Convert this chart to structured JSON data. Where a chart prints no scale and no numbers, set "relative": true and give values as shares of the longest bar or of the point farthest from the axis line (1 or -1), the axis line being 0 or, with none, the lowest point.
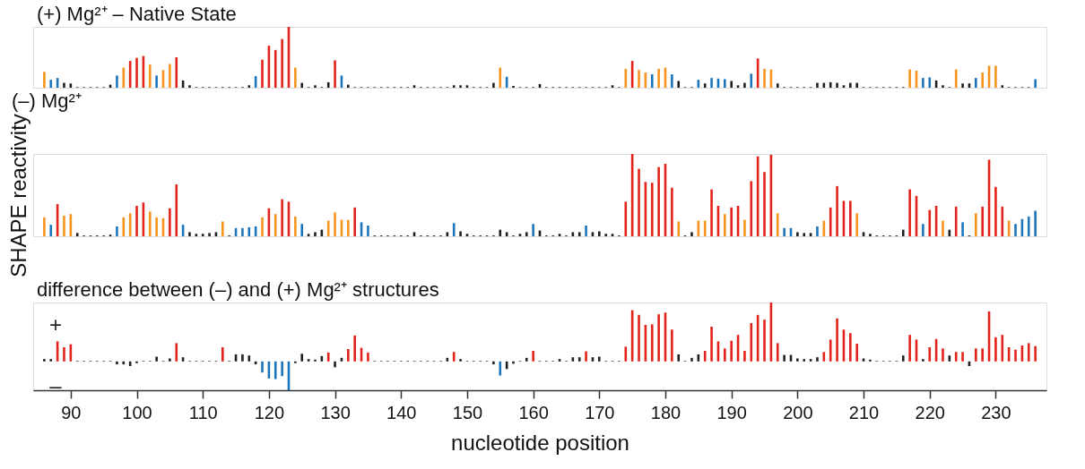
{
  "chart_data": [
    {
      "type": "bar",
      "title": "(+) Mg²⁺ – Native State",
      "relative": true,
      "xlim": [
        85,
        237
      ],
      "tick_labels": false,
      "x": [
        86,
        87,
        88,
        89,
        90,
        91,
        92,
        93,
        94,
        95,
        96,
        97,
        98,
        99,
        100,
        101,
        102,
        103,
        104,
        105,
        106,
        107,
        108,
        109,
        110,
        111,
        112,
        113,
        114,
        115,
        116,
        117,
        118,
        119,
        120,
        121,
        122,
        123,
        124,
        125,
        126,
        127,
        128,
        129,
        130,
        131,
        132,
        133,
        134,
        135,
        136,
        137,
        138,
        139,
        140,
        141,
        142,
        143,
        144,
        145,
        146,
        147,
        148,
        149,
        150,
        151,
        152,
        153,
        154,
        155,
        156,
        157,
        158,
        159,
        160,
        161,
        162,
        163,
        164,
        165,
        166,
        167,
        168,
        169,
        170,
        171,
        172,
        173,
        174,
        175,
        176,
        177,
        178,
        179,
        180,
        181,
        182,
        183,
        184,
        185,
        186,
        187,
        188,
        189,
        190,
        191,
        192,
        193,
        194,
        195,
        196,
        197,
        198,
        199,
        200,
        201,
        202,
        203,
        204,
        205,
        206,
        207,
        208,
        209,
        210,
        211,
        212,
        213,
        214,
        215,
        216,
        217,
        218,
        219,
        220,
        221,
        222,
        223,
        224,
        225,
        226,
        227,
        228,
        229,
        230,
        231,
        232,
        233,
        234,
        235,
        236
      ],
      "values": [
        0.26,
        0.13,
        0.16,
        0.08,
        0.07,
        0.01,
        0.01,
        0.01,
        0.01,
        0.01,
        0.05,
        0.2,
        0.33,
        0.44,
        0.49,
        0.52,
        0.38,
        0.2,
        0.29,
        0.39,
        0.5,
        0.12,
        0.04,
        0.01,
        0.01,
        0.01,
        0.01,
        0.01,
        0.01,
        0.01,
        0.01,
        0.04,
        0.19,
        0.46,
        0.69,
        0.62,
        0.8,
        1,
        0.33,
        0.08,
        0.01,
        0.04,
        0.01,
        0.09,
        0.45,
        0.2,
        0.05,
        0.01,
        0.01,
        0.01,
        0.01,
        0.01,
        0.01,
        0.01,
        0.01,
        0.01,
        0.04,
        0.01,
        0.01,
        0.01,
        0.01,
        0.01,
        0.04,
        0.04,
        0.04,
        0.01,
        0.01,
        0.01,
        0.08,
        0.33,
        0.18,
        0.03,
        0.01,
        0.01,
        0.01,
        0.06,
        0.01,
        0.01,
        0.01,
        0.01,
        0.01,
        0.01,
        0.01,
        0.01,
        0.01,
        0.01,
        0.04,
        0.01,
        0.31,
        0.44,
        0.29,
        0.25,
        0.22,
        0.31,
        0.33,
        0.22,
        0.11,
        0.01,
        0.01,
        0.13,
        0.07,
        0.16,
        0.15,
        0.14,
        0.11,
        0.04,
        0.08,
        0.23,
        0.48,
        0.31,
        0.3,
        0.07,
        0.01,
        0.01,
        0.01,
        0.01,
        0.01,
        0.08,
        0.08,
        0.09,
        0.08,
        0.04,
        0.08,
        0.08,
        0.01,
        0.01,
        0.01,
        0.01,
        0.01,
        0.01,
        0.01,
        0.3,
        0.28,
        0.16,
        0.17,
        0.12,
        0.04,
        0.01,
        0.3,
        0.07,
        0.07,
        0.16,
        0.25,
        0.36,
        0.36,
        0.04,
        0.01,
        0.01,
        0.01,
        0.01,
        0.14
      ],
      "colors": [
        "#f7941d",
        "#1b75bc",
        "#1b75bc",
        "#231f20",
        "#231f20",
        "#231f20",
        "#231f20",
        "#231f20",
        "#231f20",
        "#231f20",
        "#231f20",
        "#1b75bc",
        "#f7941d",
        "#e32219",
        "#e32219",
        "#e32219",
        "#f7941d",
        "#1b75bc",
        "#f7941d",
        "#f7941d",
        "#e32219",
        "#231f20",
        "#231f20",
        "#231f20",
        "#231f20",
        "#231f20",
        "#231f20",
        "#231f20",
        "#231f20",
        "#231f20",
        "#231f20",
        "#231f20",
        "#1b75bc",
        "#e32219",
        "#e32219",
        "#e32219",
        "#e32219",
        "#e32219",
        "#f7941d",
        "#231f20",
        "#231f20",
        "#231f20",
        "#231f20",
        "#231f20",
        "#e32219",
        "#1b75bc",
        "#231f20",
        "#231f20",
        "#231f20",
        "#231f20",
        "#231f20",
        "#231f20",
        "#231f20",
        "#231f20",
        "#231f20",
        "#231f20",
        "#231f20",
        "#231f20",
        "#231f20",
        "#231f20",
        "#231f20",
        "#231f20",
        "#231f20",
        "#231f20",
        "#231f20",
        "#231f20",
        "#231f20",
        "#231f20",
        "#231f20",
        "#f7941d",
        "#1b75bc",
        "#231f20",
        "#231f20",
        "#231f20",
        "#231f20",
        "#231f20",
        "#231f20",
        "#231f20",
        "#231f20",
        "#231f20",
        "#231f20",
        "#231f20",
        "#231f20",
        "#231f20",
        "#231f20",
        "#231f20",
        "#231f20",
        "#231f20",
        "#f7941d",
        "#e32219",
        "#f7941d",
        "#f7941d",
        "#1b75bc",
        "#f7941d",
        "#f7941d",
        "#1b75bc",
        "#231f20",
        "#231f20",
        "#231f20",
        "#1b75bc",
        "#231f20",
        "#1b75bc",
        "#1b75bc",
        "#1b75bc",
        "#231f20",
        "#231f20",
        "#231f20",
        "#1b75bc",
        "#e32219",
        "#f7941d",
        "#f7941d",
        "#231f20",
        "#231f20",
        "#231f20",
        "#231f20",
        "#231f20",
        "#231f20",
        "#231f20",
        "#231f20",
        "#231f20",
        "#231f20",
        "#231f20",
        "#231f20",
        "#231f20",
        "#231f20",
        "#231f20",
        "#231f20",
        "#231f20",
        "#231f20",
        "#231f20",
        "#231f20",
        "#f7941d",
        "#f7941d",
        "#1b75bc",
        "#1b75bc",
        "#231f20",
        "#231f20",
        "#231f20",
        "#f7941d",
        "#231f20",
        "#231f20",
        "#1b75bc",
        "#f7941d",
        "#f7941d",
        "#f7941d",
        "#231f20",
        "#231f20",
        "#231f20",
        "#231f20",
        "#231f20",
        "#1b75bc"
      ]
    },
    {
      "type": "bar",
      "title": "(–) Mg²⁺",
      "ylabel": "SHAPE reactivity",
      "relative": true,
      "xlim": [
        85,
        237
      ],
      "tick_labels": false,
      "x": [
        86,
        87,
        88,
        89,
        90,
        91,
        92,
        93,
        94,
        95,
        96,
        97,
        98,
        99,
        100,
        101,
        102,
        103,
        104,
        105,
        106,
        107,
        108,
        109,
        110,
        111,
        112,
        113,
        114,
        115,
        116,
        117,
        118,
        119,
        120,
        121,
        122,
        123,
        124,
        125,
        126,
        127,
        128,
        129,
        130,
        131,
        132,
        133,
        134,
        135,
        136,
        137,
        138,
        139,
        140,
        141,
        142,
        143,
        144,
        145,
        146,
        147,
        148,
        149,
        150,
        151,
        152,
        153,
        154,
        155,
        156,
        157,
        158,
        159,
        160,
        161,
        162,
        163,
        164,
        165,
        166,
        167,
        168,
        169,
        170,
        171,
        172,
        173,
        174,
        175,
        176,
        177,
        178,
        179,
        180,
        181,
        182,
        183,
        184,
        185,
        186,
        187,
        188,
        189,
        190,
        191,
        192,
        193,
        194,
        195,
        196,
        197,
        198,
        199,
        200,
        201,
        202,
        203,
        204,
        205,
        206,
        207,
        208,
        209,
        210,
        211,
        212,
        213,
        214,
        215,
        216,
        217,
        218,
        219,
        220,
        221,
        222,
        223,
        224,
        225,
        226,
        227,
        228,
        229,
        230,
        231,
        232,
        233,
        234,
        235,
        236
      ],
      "values": [
        0.23,
        0.14,
        0.39,
        0.25,
        0.27,
        0.04,
        0.01,
        0.01,
        0.01,
        0.01,
        0.02,
        0.12,
        0.23,
        0.28,
        0.37,
        0.41,
        0.3,
        0.23,
        0.22,
        0.34,
        0.63,
        0.14,
        0.05,
        0.03,
        0.03,
        0.04,
        0.05,
        0.18,
        0.01,
        0.1,
        0.1,
        0.11,
        0.12,
        0.23,
        0.34,
        0.27,
        0.45,
        0.42,
        0.24,
        0.15,
        0.03,
        0.05,
        0.08,
        0.19,
        0.29,
        0.2,
        0.2,
        0.35,
        0.17,
        0.13,
        0.01,
        0.01,
        0.01,
        0.01,
        0.01,
        0.01,
        0.05,
        0.01,
        0.01,
        0.01,
        0.01,
        0.05,
        0.16,
        0.06,
        0.03,
        0.01,
        0.01,
        0.01,
        0.01,
        0.08,
        0.05,
        0.01,
        0.03,
        0.05,
        0.15,
        0.07,
        0.01,
        0.01,
        0.03,
        0.01,
        0.05,
        0.05,
        0.13,
        0.05,
        0.06,
        0.03,
        0.03,
        0.01,
        0.42,
        1,
        0.82,
        0.66,
        0.65,
        0.84,
        0.88,
        0.59,
        0.18,
        0.01,
        0.05,
        0.19,
        0.19,
        0.57,
        0.37,
        0.27,
        0.35,
        0.37,
        0.2,
        0.67,
        0.97,
        0.78,
        0.99,
        0.28,
        0.1,
        0.1,
        0.05,
        0.04,
        0.04,
        0.12,
        0.19,
        0.35,
        0.61,
        0.43,
        0.43,
        0.28,
        0.05,
        0.03,
        0.01,
        0.01,
        0.01,
        0.01,
        0.08,
        0.57,
        0.49,
        0.15,
        0.32,
        0.37,
        0.19,
        0.08,
        0.36,
        0.17,
        0.01,
        0.28,
        0.36,
        0.93,
        0.6,
        0.36,
        0.19,
        0.15,
        0.21,
        0.24,
        0.31
      ],
      "colors": [
        "#f7941d",
        "#1b75bc",
        "#e32219",
        "#f7941d",
        "#f7941d",
        "#231f20",
        "#231f20",
        "#231f20",
        "#231f20",
        "#231f20",
        "#231f20",
        "#1b75bc",
        "#f7941d",
        "#f7941d",
        "#e32219",
        "#e32219",
        "#f7941d",
        "#f7941d",
        "#f7941d",
        "#e32219",
        "#e32219",
        "#1b75bc",
        "#231f20",
        "#231f20",
        "#231f20",
        "#231f20",
        "#231f20",
        "#f7941d",
        "#231f20",
        "#1b75bc",
        "#1b75bc",
        "#1b75bc",
        "#1b75bc",
        "#f7941d",
        "#e32219",
        "#f7941d",
        "#e32219",
        "#e32219",
        "#f7941d",
        "#1b75bc",
        "#231f20",
        "#231f20",
        "#231f20",
        "#f7941d",
        "#f7941d",
        "#f7941d",
        "#f7941d",
        "#e32219",
        "#1b75bc",
        "#1b75bc",
        "#231f20",
        "#231f20",
        "#231f20",
        "#231f20",
        "#231f20",
        "#231f20",
        "#231f20",
        "#231f20",
        "#231f20",
        "#231f20",
        "#231f20",
        "#231f20",
        "#1b75bc",
        "#231f20",
        "#231f20",
        "#231f20",
        "#231f20",
        "#231f20",
        "#231f20",
        "#231f20",
        "#231f20",
        "#231f20",
        "#231f20",
        "#231f20",
        "#1b75bc",
        "#231f20",
        "#231f20",
        "#231f20",
        "#231f20",
        "#231f20",
        "#231f20",
        "#231f20",
        "#1b75bc",
        "#231f20",
        "#231f20",
        "#231f20",
        "#231f20",
        "#231f20",
        "#e32219",
        "#e32219",
        "#e32219",
        "#e32219",
        "#e32219",
        "#e32219",
        "#e32219",
        "#e32219",
        "#f7941d",
        "#231f20",
        "#231f20",
        "#f7941d",
        "#f7941d",
        "#e32219",
        "#e32219",
        "#f7941d",
        "#e32219",
        "#e32219",
        "#f7941d",
        "#e32219",
        "#e32219",
        "#e32219",
        "#e32219",
        "#f7941d",
        "#1b75bc",
        "#1b75bc",
        "#231f20",
        "#231f20",
        "#231f20",
        "#1b75bc",
        "#f7941d",
        "#e32219",
        "#e32219",
        "#e32219",
        "#e32219",
        "#f7941d",
        "#231f20",
        "#231f20",
        "#231f20",
        "#231f20",
        "#231f20",
        "#231f20",
        "#231f20",
        "#e32219",
        "#e32219",
        "#1b75bc",
        "#e32219",
        "#e32219",
        "#f7941d",
        "#231f20",
        "#e32219",
        "#1b75bc",
        "#231f20",
        "#f7941d",
        "#e32219",
        "#e32219",
        "#e32219",
        "#e32219",
        "#f7941d",
        "#1b75bc",
        "#1b75bc",
        "#1b75bc",
        "#1b75bc"
      ]
    },
    {
      "type": "bar",
      "title": "difference between (–) and (+) Mg²⁺ structures",
      "xlabel": "nucleotide position",
      "relative": true,
      "xlim": [
        85,
        237
      ],
      "xticks": [
        90,
        100,
        110,
        120,
        130,
        140,
        150,
        160,
        170,
        180,
        190,
        200,
        210,
        220,
        230
      ],
      "tick_labels": "x",
      "annotations": [
        "+",
        "–"
      ],
      "x": [
        86,
        87,
        88,
        89,
        90,
        91,
        92,
        93,
        94,
        95,
        96,
        97,
        98,
        99,
        100,
        101,
        102,
        103,
        104,
        105,
        106,
        107,
        108,
        109,
        110,
        111,
        112,
        113,
        114,
        115,
        116,
        117,
        118,
        119,
        120,
        121,
        122,
        123,
        124,
        125,
        126,
        127,
        128,
        129,
        130,
        131,
        132,
        133,
        134,
        135,
        136,
        137,
        138,
        139,
        140,
        141,
        142,
        143,
        144,
        145,
        146,
        147,
        148,
        149,
        150,
        151,
        152,
        153,
        154,
        155,
        156,
        157,
        158,
        159,
        160,
        161,
        162,
        163,
        164,
        165,
        166,
        167,
        168,
        169,
        170,
        171,
        172,
        173,
        174,
        175,
        176,
        177,
        178,
        179,
        180,
        181,
        182,
        183,
        184,
        185,
        186,
        187,
        188,
        189,
        190,
        191,
        192,
        193,
        194,
        195,
        196,
        197,
        198,
        199,
        200,
        201,
        202,
        203,
        204,
        205,
        206,
        207,
        208,
        209,
        210,
        211,
        212,
        213,
        214,
        215,
        216,
        217,
        218,
        219,
        220,
        221,
        222,
        223,
        224,
        225,
        226,
        227,
        228,
        229,
        230,
        231,
        232,
        233,
        234,
        235,
        236
      ],
      "values": [
        0.04,
        0.04,
        0.34,
        0.24,
        0.29,
        0.01,
        0.01,
        0.01,
        0.01,
        0.01,
        0.01,
        -0.05,
        -0.05,
        -0.08,
        -0.03,
        0.01,
        0.01,
        0.08,
        0.01,
        0.05,
        0.31,
        0.07,
        0.01,
        0.01,
        0.01,
        0.01,
        0.01,
        0.24,
        0.01,
        0.12,
        0.12,
        0.1,
        -0.05,
        -0.19,
        -0.29,
        -0.3,
        -0.25,
        -0.49,
        -0.03,
        0.13,
        0.04,
        0.03,
        0.09,
        0.15,
        -0.1,
        0.06,
        0.21,
        0.44,
        0.23,
        0.15,
        0.01,
        0.01,
        0.01,
        0.01,
        0.01,
        0.01,
        0.01,
        0.01,
        0.01,
        0.01,
        0.01,
        0.06,
        0.16,
        0.04,
        0.01,
        0.01,
        0.01,
        0.01,
        -0.05,
        -0.24,
        -0.13,
        -0.04,
        0.01,
        0.06,
        0.18,
        0.01,
        0.01,
        0.01,
        0.04,
        0.01,
        0.07,
        0.07,
        0.17,
        0.07,
        0.08,
        0.01,
        0.01,
        0.01,
        0.25,
        0.87,
        0.79,
        0.62,
        0.63,
        0.8,
        0.83,
        0.54,
        0.12,
        0.01,
        0.06,
        0.12,
        0.18,
        0.59,
        0.34,
        0.22,
        0.35,
        0.45,
        0.18,
        0.65,
        0.79,
        0.71,
        1,
        0.31,
        0.11,
        0.11,
        0.05,
        0.04,
        0.04,
        0.07,
        0.16,
        0.37,
        0.73,
        0.54,
        0.48,
        0.3,
        0.05,
        0.03,
        0.01,
        0.01,
        0.01,
        0.01,
        0.1,
        0.45,
        0.37,
        0.04,
        0.24,
        0.38,
        0.22,
        0.1,
        0.16,
        0.16,
        -0.08,
        0.22,
        0.22,
        0.85,
        0.41,
        0.45,
        0.24,
        0.2,
        0.27,
        0.31,
        0.26
      ],
      "colors": [
        "#231f20",
        "#231f20",
        "#e32219",
        "#e32219",
        "#e32219",
        "#231f20",
        "#231f20",
        "#231f20",
        "#231f20",
        "#231f20",
        "#231f20",
        "#231f20",
        "#231f20",
        "#231f20",
        "#231f20",
        "#231f20",
        "#231f20",
        "#231f20",
        "#231f20",
        "#231f20",
        "#e32219",
        "#231f20",
        "#231f20",
        "#231f20",
        "#231f20",
        "#231f20",
        "#231f20",
        "#e32219",
        "#231f20",
        "#231f20",
        "#231f20",
        "#231f20",
        "#231f20",
        "#1b75bc",
        "#1b75bc",
        "#1b75bc",
        "#1b75bc",
        "#1b75bc",
        "#231f20",
        "#231f20",
        "#231f20",
        "#231f20",
        "#231f20",
        "#e32219",
        "#231f20",
        "#231f20",
        "#e32219",
        "#e32219",
        "#e32219",
        "#e32219",
        "#231f20",
        "#231f20",
        "#231f20",
        "#231f20",
        "#231f20",
        "#231f20",
        "#231f20",
        "#231f20",
        "#231f20",
        "#231f20",
        "#231f20",
        "#231f20",
        "#e32219",
        "#231f20",
        "#231f20",
        "#231f20",
        "#231f20",
        "#231f20",
        "#231f20",
        "#1b75bc",
        "#231f20",
        "#231f20",
        "#231f20",
        "#231f20",
        "#e32219",
        "#231f20",
        "#231f20",
        "#231f20",
        "#231f20",
        "#231f20",
        "#231f20",
        "#231f20",
        "#e32219",
        "#231f20",
        "#231f20",
        "#231f20",
        "#231f20",
        "#231f20",
        "#e32219",
        "#e32219",
        "#e32219",
        "#e32219",
        "#e32219",
        "#e32219",
        "#e32219",
        "#e32219",
        "#231f20",
        "#231f20",
        "#231f20",
        "#231f20",
        "#e32219",
        "#e32219",
        "#e32219",
        "#e32219",
        "#e32219",
        "#e32219",
        "#e32219",
        "#e32219",
        "#e32219",
        "#e32219",
        "#e32219",
        "#e32219",
        "#231f20",
        "#231f20",
        "#231f20",
        "#231f20",
        "#231f20",
        "#231f20",
        "#e32219",
        "#e32219",
        "#e32219",
        "#e32219",
        "#e32219",
        "#e32219",
        "#231f20",
        "#231f20",
        "#231f20",
        "#231f20",
        "#231f20",
        "#231f20",
        "#231f20",
        "#e32219",
        "#e32219",
        "#231f20",
        "#e32219",
        "#e32219",
        "#e32219",
        "#231f20",
        "#e32219",
        "#e32219",
        "#231f20",
        "#e32219",
        "#e32219",
        "#e32219",
        "#e32219",
        "#e32219",
        "#e32219",
        "#e32219",
        "#e32219",
        "#e32219",
        "#e32219"
      ]
    }
  ]
}
